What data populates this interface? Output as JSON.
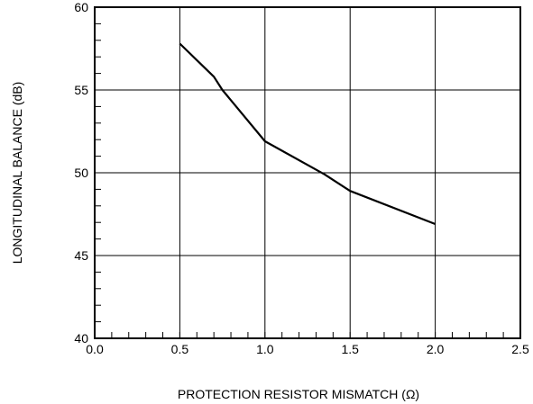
{
  "chart_data": {
    "type": "line",
    "title": "",
    "xlabel": "PROTECTION RESISTOR MISMATCH (Ω)",
    "ylabel": "LONGITUDINAL BALANCE (dB)",
    "xlim": [
      0.0,
      2.5
    ],
    "ylim": [
      40,
      60
    ],
    "grid": true,
    "x_ticks": [
      "0.0",
      "0.5",
      "1.0",
      "1.5",
      "2.0",
      "2.5"
    ],
    "y_ticks": [
      "40",
      "45",
      "50",
      "55",
      "60"
    ],
    "series": [
      {
        "x": [
          0.5,
          0.7,
          0.75,
          1.0,
          1.35,
          1.5,
          2.0
        ],
        "values": [
          57.8,
          55.8,
          55.0,
          51.9,
          49.9,
          48.9,
          46.9
        ]
      }
    ],
    "line_color": "#000000"
  }
}
